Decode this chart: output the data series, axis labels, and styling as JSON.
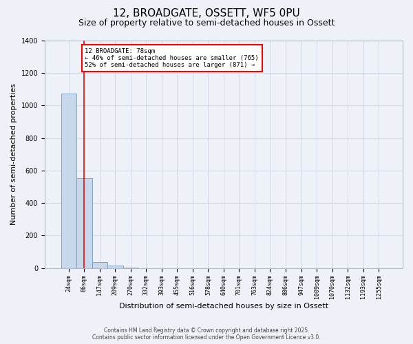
{
  "title1": "12, BROADGATE, OSSETT, WF5 0PU",
  "title2": "Size of property relative to semi-detached houses in Ossett",
  "xlabel": "Distribution of semi-detached houses by size in Ossett",
  "ylabel": "Number of semi-detached properties",
  "categories": [
    "24sqm",
    "86sqm",
    "147sqm",
    "209sqm",
    "270sqm",
    "332sqm",
    "393sqm",
    "455sqm",
    "516sqm",
    "578sqm",
    "640sqm",
    "701sqm",
    "763sqm",
    "824sqm",
    "886sqm",
    "947sqm",
    "1009sqm",
    "1070sqm",
    "1132sqm",
    "1193sqm",
    "1255sqm"
  ],
  "values": [
    1075,
    555,
    35,
    15,
    2,
    0,
    0,
    0,
    0,
    0,
    0,
    0,
    0,
    0,
    0,
    0,
    0,
    0,
    0,
    0,
    0
  ],
  "bar_color": "#c8d8ec",
  "bar_edge_color": "#6090c0",
  "red_line_x": 1.0,
  "annotation_text": "12 BROADGATE: 78sqm\n← 46% of semi-detached houses are smaller (765)\n52% of semi-detached houses are larger (871) →",
  "annotation_box_color": "white",
  "annotation_box_edge_color": "red",
  "ylim": [
    0,
    1400
  ],
  "yticks": [
    0,
    200,
    400,
    600,
    800,
    1000,
    1200,
    1400
  ],
  "grid_color": "#d0d8e8",
  "background_color": "#eef2f8",
  "footer_line1": "Contains HM Land Registry data © Crown copyright and database right 2025.",
  "footer_line2": "Contains public sector information licensed under the Open Government Licence v3.0.",
  "title_fontsize": 11,
  "subtitle_fontsize": 9,
  "tick_fontsize": 6,
  "label_fontsize": 8
}
